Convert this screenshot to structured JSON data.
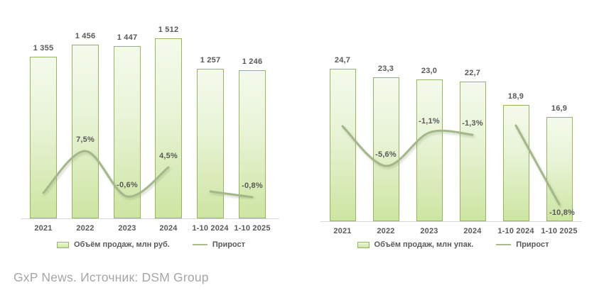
{
  "footer": {
    "text": "GxP News. Источник: DSM Group",
    "color": "#a6a6a6"
  },
  "colors": {
    "bar_fill_top": "#f4faec",
    "bar_fill_bottom": "#cde5a2",
    "bar_border": "#97b75e",
    "growth_line": "#a3b789",
    "text_label": "#595959",
    "axis_line": "#d6d6d6",
    "footer_text": "#a6a6a6"
  },
  "chart_data": [
    {
      "type": "bar",
      "title": "",
      "categories": [
        "2021",
        "2022",
        "2023",
        "2024",
        "1-10 2024",
        "1-10 2025"
      ],
      "grid": false,
      "legend_position": "bottom",
      "series": [
        {
          "name": "Объём продаж, млн руб.",
          "type": "bar",
          "values": [
            1355,
            1456,
            1447,
            1512,
            1257,
            1246
          ],
          "labels": [
            "1 355",
            "1 456",
            "1 447",
            "1 512",
            "1 257",
            "1 246"
          ]
        },
        {
          "name": "Прирост",
          "type": "line",
          "unit": "%",
          "values": [
            0.0,
            7.5,
            -0.6,
            4.5,
            0.2,
            -0.8
          ],
          "labels": [
            "",
            "7,5%",
            "-0,6%",
            "4,5%",
            "",
            "-0,8%"
          ],
          "segments": [
            [
              0,
              1,
              2,
              3
            ],
            [
              4,
              5
            ]
          ],
          "note": "unlabeled endpoint values estimated from line position"
        }
      ]
    },
    {
      "type": "bar",
      "title": "",
      "categories": [
        "2021",
        "2022",
        "2023",
        "2024",
        "1-10 2024",
        "1-10 2025"
      ],
      "grid": false,
      "legend_position": "bottom",
      "series": [
        {
          "name": "Объём продаж, млн упак.",
          "type": "bar",
          "values": [
            24.7,
            23.3,
            23.0,
            22.7,
            18.9,
            16.9
          ],
          "labels": [
            "24,7",
            "23,3",
            "23,0",
            "22,7",
            "18,9",
            "16,9"
          ]
        },
        {
          "name": "Прирост",
          "type": "line",
          "unit": "%",
          "values": [
            -0.2,
            -5.6,
            -1.1,
            -1.3,
            -0.1,
            -10.8
          ],
          "labels": [
            "",
            "-5,6%",
            "-1,1%",
            "-1,3%",
            "",
            "-10,8%"
          ],
          "segments": [
            [
              0,
              1,
              2,
              3
            ],
            [
              4,
              5
            ]
          ],
          "note": "unlabeled endpoint values estimated from line position"
        }
      ]
    }
  ]
}
